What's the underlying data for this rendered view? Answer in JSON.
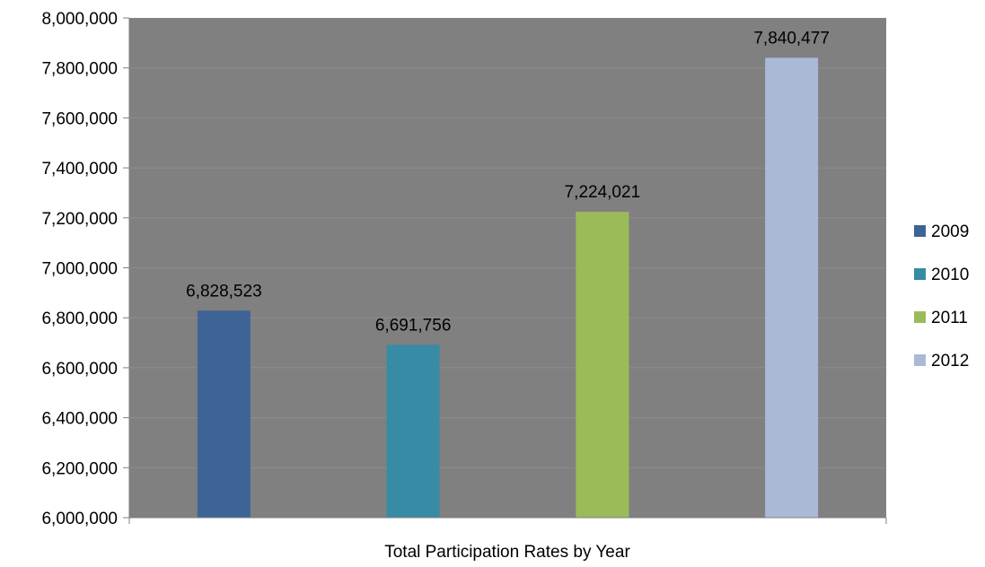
{
  "chart_data": {
    "type": "bar",
    "xlabel": "Total Participation Rates by Year",
    "ylabel": "",
    "ylim": [
      6000000,
      8000000
    ],
    "yticks": [
      6000000,
      6200000,
      6400000,
      6600000,
      6800000,
      7000000,
      7200000,
      7400000,
      7600000,
      7800000,
      8000000
    ],
    "ytick_labels": [
      "6,000,000",
      "6,200,000",
      "6,400,000",
      "6,600,000",
      "6,800,000",
      "7,000,000",
      "7,200,000",
      "7,400,000",
      "7,600,000",
      "7,800,000",
      "8,000,000"
    ],
    "grid": true,
    "legend_position": "right",
    "plot_background": "#808080",
    "series": [
      {
        "name": "2009",
        "value": 6828523,
        "label": "6,828,523",
        "color": "#3E6496"
      },
      {
        "name": "2010",
        "value": 6691756,
        "label": "6,691,756",
        "color": "#378BA4"
      },
      {
        "name": "2011",
        "value": 7224021,
        "label": "7,224,021",
        "color": "#9BBB59"
      },
      {
        "name": "2012",
        "value": 7840477,
        "label": "7,840,477",
        "color": "#AAB9D6"
      }
    ]
  }
}
